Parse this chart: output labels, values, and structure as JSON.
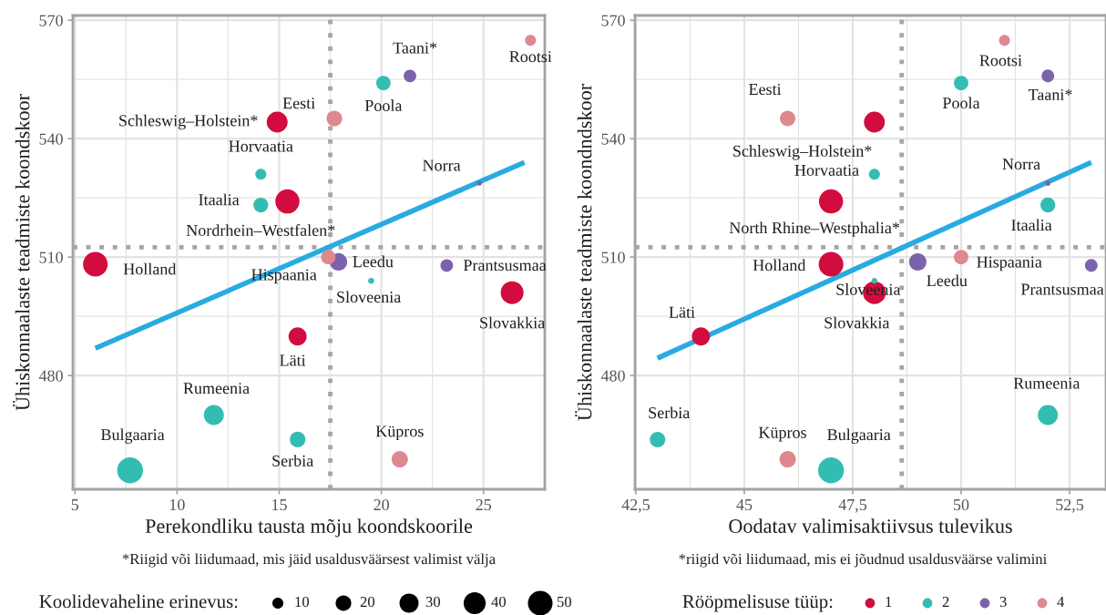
{
  "chart_data": [
    {
      "type": "bubble",
      "xlabel": "Perekondliku tausta mõju koondskoorile",
      "ylabel": "Ühiskonnaalaste teadmiste koondskoor",
      "xlim": [
        4.9,
        28.0
      ],
      "xticks": [
        5,
        10,
        15,
        20,
        25
      ],
      "ylim": [
        451.2,
        571.2
      ],
      "yticks": [
        480,
        510,
        540,
        570
      ],
      "grid": true,
      "marker": "circle",
      "legend": "bottom",
      "legend_title": "Koolidevaheline erinevus:",
      "size_legend": [
        10,
        20,
        30,
        40,
        50
      ],
      "series": [
        {
          "color": "#d20c3f",
          "x": [
            14.9,
            15.4,
            6.0,
            26.4,
            15.9
          ],
          "values": [
            544.2,
            524.1,
            508.2,
            501,
            489.9
          ],
          "sizes": [
            36,
            48,
            50,
            43,
            27
          ]
        },
        {
          "color": "#33bdb2",
          "x": [
            20.1,
            14.1,
            14.1,
            19.5,
            11.8,
            15.9,
            7.7
          ],
          "values": [
            554.1,
            531,
            523.2,
            504,
            470,
            463.8,
            456
          ],
          "sizes": [
            17,
            10,
            18,
            3,
            33,
            20,
            55
          ]
        },
        {
          "color": "#7b62ad",
          "x": [
            21.4,
            24.8,
            17.9,
            23.2
          ],
          "values": [
            555.9,
            528.7,
            508.8,
            507.9
          ],
          "sizes": [
            13,
            2,
            25,
            13
          ]
        },
        {
          "color": "#de8890",
          "x": [
            27.3,
            17.7,
            17.4,
            20.9
          ],
          "values": [
            564.9,
            545.1,
            510,
            458.8
          ],
          "sizes": [
            10,
            20,
            17,
            22
          ]
        },
        {
          "type": "line",
          "marker": "none",
          "color": "#29abe2",
          "x": [
            6.0,
            27.0
          ],
          "values": [
            486.9,
            534
          ]
        }
      ],
      "ref_lines": [
        {
          "axis": "y",
          "value": 512.5,
          "color": "#a6a6a6",
          "line_style": "dotted"
        },
        {
          "axis": "x",
          "value": 17.5,
          "color": "#a6a6a6",
          "line_style": "dotted"
        }
      ],
      "annotations": [
        {
          "text": "Schleswig–Holstein*",
          "x": 14.9,
          "y": 544.2
        },
        {
          "text": "Nordrhein–Westfalen*",
          "x": 15.4,
          "y": 524.1
        },
        {
          "text": "Holland",
          "x": 6.0,
          "y": 508.2
        },
        {
          "text": "Slovakkia",
          "x": 26.4,
          "y": 501
        },
        {
          "text": "Läti",
          "x": 15.9,
          "y": 489.9
        },
        {
          "text": "Poola",
          "x": 20.1,
          "y": 554.1
        },
        {
          "text": "Horvaatia",
          "x": 14.1,
          "y": 531
        },
        {
          "text": "Itaalia",
          "x": 14.1,
          "y": 523.2
        },
        {
          "text": "Sloveenia",
          "x": 19.5,
          "y": 504
        },
        {
          "text": "Rumeenia",
          "x": 11.8,
          "y": 470
        },
        {
          "text": "Serbia",
          "x": 15.9,
          "y": 463.8
        },
        {
          "text": "Bulgaaria",
          "x": 7.7,
          "y": 456
        },
        {
          "text": "Taani*",
          "x": 21.4,
          "y": 555.9
        },
        {
          "text": "Norra",
          "x": 24.8,
          "y": 528.7
        },
        {
          "text": "Leedu",
          "x": 17.9,
          "y": 508.8
        },
        {
          "text": "Prantsusmaa",
          "x": 23.2,
          "y": 507.9
        },
        {
          "text": "Rootsi",
          "x": 27.3,
          "y": 564.9
        },
        {
          "text": "Eesti",
          "x": 17.7,
          "y": 545.1
        },
        {
          "text": "Hispaania",
          "x": 17.4,
          "y": 510
        },
        {
          "text": "Küpros",
          "x": 20.9,
          "y": 458.8
        },
        "*Riigid või liidumaad, mis jäid usaldusväärsest valimist välja"
      ]
    },
    {
      "type": "bubble",
      "xlabel": "Oodatav valimisaktiivsus tulevikus",
      "ylabel": "Ühiskonnaalaste teadmiste koondndskoor",
      "xlim": [
        42.48,
        53.34
      ],
      "xticks": [
        {
          "value": 42.5,
          "label": "42,5"
        },
        45,
        {
          "value": 47.5,
          "label": "47,5"
        },
        50,
        {
          "value": 52.5,
          "label": "52,5"
        }
      ],
      "ylim": [
        451.2,
        571.2
      ],
      "yticks": [
        480,
        510,
        540,
        570
      ],
      "grid": true,
      "marker": "circle",
      "legend": "bottom",
      "legend_title": "Rööpmelisuse tüüp:",
      "series": [
        {
          "name": "1",
          "color": "#d20c3f",
          "x": [
            48,
            47,
            47,
            48,
            44
          ],
          "values": [
            544.2,
            524.1,
            508.2,
            501,
            489.9
          ],
          "sizes": [
            0.65,
            0.87,
            0.91,
            0.78,
            0.49
          ]
        },
        {
          "name": "2",
          "color": "#33bdb2",
          "x": [
            50,
            48,
            52,
            48,
            52,
            43,
            47
          ],
          "values": [
            554.1,
            531,
            523.2,
            504,
            470,
            463.8,
            456
          ],
          "sizes": [
            0.31,
            0.18,
            0.33,
            0.05,
            0.6,
            0.36,
            1
          ]
        },
        {
          "name": "3",
          "color": "#7b62ad",
          "x": [
            52,
            52,
            49,
            53
          ],
          "values": [
            555.9,
            528.7,
            508.8,
            507.9
          ],
          "sizes": [
            0.24,
            0.04,
            0.45,
            0.24
          ]
        },
        {
          "name": "4",
          "color": "#de8890",
          "x": [
            51,
            46,
            50,
            46
          ],
          "values": [
            564.9,
            545.1,
            510,
            458.8
          ],
          "sizes": [
            0.18,
            0.36,
            0.31,
            0.4
          ]
        },
        {
          "type": "line",
          "marker": "none",
          "color": "#29abe2",
          "x": [
            43.0,
            53.0
          ],
          "values": [
            484.4,
            534
          ]
        }
      ],
      "ref_lines": [
        {
          "axis": "y",
          "value": 512.5,
          "color": "#a6a6a6",
          "line_style": "dotted"
        },
        {
          "axis": "x",
          "value": 48.63,
          "color": "#a6a6a6",
          "line_style": "dotted"
        }
      ],
      "annotations": [
        {
          "text": "Schleswig–Holstein*",
          "x": 48,
          "y": 544.2
        },
        {
          "text": "North Rhine–Westphalia*",
          "x": 47,
          "y": 524.1
        },
        {
          "text": "Holland",
          "x": 47,
          "y": 508.2
        },
        {
          "text": "Slovakkia",
          "x": 48,
          "y": 501
        },
        {
          "text": "Läti",
          "x": 44,
          "y": 489.9
        },
        {
          "text": "Poola",
          "x": 50,
          "y": 554.1
        },
        {
          "text": "Horvaatia",
          "x": 48,
          "y": 531
        },
        {
          "text": "Itaalia",
          "x": 52,
          "y": 523.2
        },
        {
          "text": "Sloveenia",
          "x": 48,
          "y": 504
        },
        {
          "text": "Rumeenia",
          "x": 52,
          "y": 470
        },
        {
          "text": "Serbia",
          "x": 43,
          "y": 463.8
        },
        {
          "text": "Bulgaaria",
          "x": 47,
          "y": 456
        },
        {
          "text": "Taani*",
          "x": 52,
          "y": 555.9
        },
        {
          "text": "Norra",
          "x": 52,
          "y": 528.7
        },
        {
          "text": "Leedu",
          "x": 49,
          "y": 508.8
        },
        {
          "text": "Prantsusmaa",
          "x": 53,
          "y": 507.9
        },
        {
          "text": "Rootsi",
          "x": 51,
          "y": 564.9
        },
        {
          "text": "Eesti",
          "x": 46,
          "y": 545.1
        },
        {
          "text": "Hispaania",
          "x": 50,
          "y": 510
        },
        {
          "text": "Küpros",
          "x": 46,
          "y": 458.8
        },
        "*riigid või liidumaad, mis ei jõudnud usaldusväärse valimini"
      ]
    }
  ]
}
